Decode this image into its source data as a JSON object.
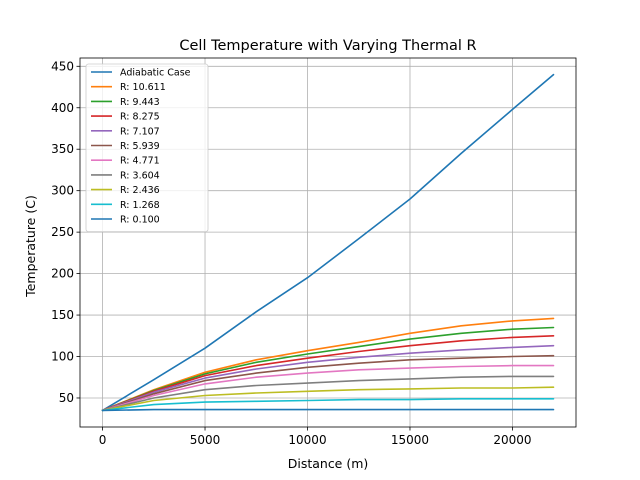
{
  "chart_data": {
    "type": "line",
    "title": "Cell Temperature with Varying Thermal R",
    "xlabel": "Distance (m)",
    "ylabel": "Temperature (C)",
    "xlim": [
      -1100,
      23100
    ],
    "ylim": [
      15,
      460
    ],
    "xticks": [
      0,
      5000,
      10000,
      15000,
      20000
    ],
    "xtick_labels": [
      "0",
      "5000",
      "10000",
      "15000",
      "20000"
    ],
    "yticks": [
      50,
      100,
      150,
      200,
      250,
      300,
      350,
      400,
      450
    ],
    "ytick_labels": [
      "50",
      "100",
      "150",
      "200",
      "250",
      "300",
      "350",
      "400",
      "450"
    ],
    "grid": true,
    "legend_position": "top-left",
    "series": [
      {
        "name": "Adiabatic Case",
        "color": "#1f77b4",
        "x": [
          0,
          2500,
          5000,
          7500,
          10000,
          12500,
          15000,
          17500,
          20000,
          22000
        ],
        "y": [
          35,
          72,
          110,
          154,
          195,
          242,
          290,
          345,
          398,
          440
        ]
      },
      {
        "name": "R: 10.611",
        "color": "#ff7f0e",
        "x": [
          0,
          2500,
          5000,
          7500,
          10000,
          12500,
          15000,
          17500,
          20000,
          22000
        ],
        "y": [
          35,
          60,
          81,
          96,
          107,
          117,
          128,
          137,
          143,
          146
        ]
      },
      {
        "name": "R: 9.443",
        "color": "#2ca02c",
        "x": [
          0,
          2500,
          5000,
          7500,
          10000,
          12500,
          15000,
          17500,
          20000,
          22000
        ],
        "y": [
          35,
          59,
          79,
          93,
          103,
          112,
          121,
          128,
          133,
          135
        ]
      },
      {
        "name": "R: 8.275",
        "color": "#d62728",
        "x": [
          0,
          2500,
          5000,
          7500,
          10000,
          12500,
          15000,
          17500,
          20000,
          22000
        ],
        "y": [
          35,
          58,
          77,
          89,
          98,
          106,
          113,
          119,
          123,
          125
        ]
      },
      {
        "name": "R: 7.107",
        "color": "#9467bd",
        "x": [
          0,
          2500,
          5000,
          7500,
          10000,
          12500,
          15000,
          17500,
          20000,
          22000
        ],
        "y": [
          35,
          57,
          74,
          85,
          93,
          99,
          104,
          108,
          111,
          113
        ]
      },
      {
        "name": "R: 5.939",
        "color": "#8c564b",
        "x": [
          0,
          2500,
          5000,
          7500,
          10000,
          12500,
          15000,
          17500,
          20000,
          22000
        ],
        "y": [
          35,
          55,
          71,
          80,
          87,
          92,
          96,
          98,
          100,
          101
        ]
      },
      {
        "name": "R: 4.771",
        "color": "#e377c2",
        "x": [
          0,
          2500,
          5000,
          7500,
          10000,
          12500,
          15000,
          17500,
          20000,
          22000
        ],
        "y": [
          35,
          53,
          67,
          75,
          80,
          84,
          86,
          88,
          89,
          89
        ]
      },
      {
        "name": "R: 3.604",
        "color": "#7f7f7f",
        "x": [
          0,
          2500,
          5000,
          7500,
          10000,
          12500,
          15000,
          17500,
          20000,
          22000
        ],
        "y": [
          35,
          50,
          60,
          65,
          68,
          71,
          73,
          75,
          76,
          76
        ]
      },
      {
        "name": "R: 2.436",
        "color": "#bcbd22",
        "x": [
          0,
          2500,
          5000,
          7500,
          10000,
          12500,
          15000,
          17500,
          20000,
          22000
        ],
        "y": [
          35,
          47,
          53,
          56,
          58,
          60,
          61,
          62,
          62,
          63
        ]
      },
      {
        "name": "R: 1.268",
        "color": "#17becf",
        "x": [
          0,
          2500,
          5000,
          7500,
          10000,
          12500,
          15000,
          17500,
          20000,
          22000
        ],
        "y": [
          35,
          42,
          45,
          46,
          47,
          48,
          48,
          49,
          49,
          49
        ]
      },
      {
        "name": "R: 0.100",
        "color": "#1f77b4",
        "x": [
          0,
          2500,
          5000,
          7500,
          10000,
          12500,
          15000,
          17500,
          20000,
          22000
        ],
        "y": [
          35,
          36,
          36,
          36,
          36,
          36,
          36,
          36,
          36,
          36
        ]
      }
    ]
  }
}
